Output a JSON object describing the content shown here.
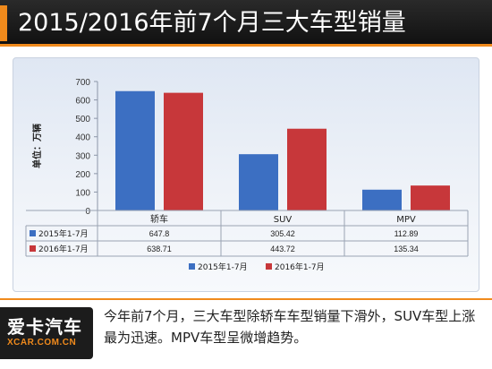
{
  "header": {
    "title": "2015/2016年前7个月三大车型销量"
  },
  "footer": {
    "caption": "今年前7个月，三大车型除轿车车型销量下滑外，SUV车型上涨最为迅速。MPV车型呈微增趋势。",
    "logo_main": "爱卡汽车",
    "logo_sub": "XCAR.COM.CN"
  },
  "colors": {
    "accent": "#f08a1c",
    "series_2015": "#3c6fc2",
    "series_2016": "#c7373a"
  },
  "chart_data": {
    "type": "bar",
    "ylabel": "单位：万辆",
    "ylim": [
      0,
      700
    ],
    "yticks": [
      0,
      100,
      200,
      300,
      400,
      500,
      600,
      700
    ],
    "categories": [
      "轿车",
      "SUV",
      "MPV"
    ],
    "series": [
      {
        "name": "2015年1-7月",
        "values": [
          647.8,
          305.42,
          112.89
        ]
      },
      {
        "name": "2016年1-7月",
        "values": [
          638.71,
          443.72,
          135.34
        ]
      }
    ],
    "value_labels": [
      [
        "647.8",
        "305.42",
        "112.89"
      ],
      [
        "638.71",
        "443.72",
        "135.34"
      ]
    ],
    "grid": false,
    "legend": "bottom",
    "data_table": true
  }
}
